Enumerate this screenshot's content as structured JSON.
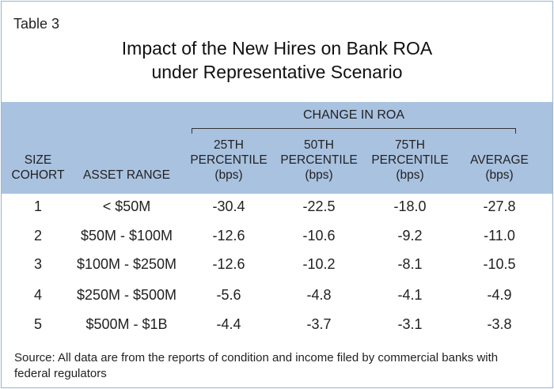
{
  "table_label": "Table 3",
  "title_line1": "Impact of the New Hires on Bank ROA",
  "title_line2": "under Representative Scenario",
  "group_header": "CHANGE IN ROA",
  "columns": {
    "size_cohort": [
      "SIZE",
      "COHORT"
    ],
    "asset_range": [
      "ASSET RANGE"
    ],
    "p25": [
      "25TH",
      "PERCENTILE",
      "(bps)"
    ],
    "p50": [
      "50TH",
      "PERCENTILE",
      "(bps)"
    ],
    "p75": [
      "75TH",
      "PERCENTILE",
      "(bps)"
    ],
    "average": [
      "AVERAGE",
      "(bps)"
    ]
  },
  "rows": [
    {
      "cohort": "1",
      "range": "< $50M",
      "p25": "-30.4",
      "p50": "-22.5",
      "p75": "-18.0",
      "avg": "-27.8"
    },
    {
      "cohort": "2",
      "range": "$50M - $100M",
      "p25": "-12.6",
      "p50": "-10.6",
      "p75": "-9.2",
      "avg": "-11.0"
    },
    {
      "cohort": "3",
      "range": "$100M - $250M",
      "p25": "-12.6",
      "p50": "-10.2",
      "p75": "-8.1",
      "avg": "-10.5"
    },
    {
      "cohort": "4",
      "range": "$250M - $500M",
      "p25": "-5.6",
      "p50": "-4.8",
      "p75": "-4.1",
      "avg": "-4.9"
    },
    {
      "cohort": "5",
      "range": "$500M - $1B",
      "p25": "-4.4",
      "p50": "-3.7",
      "p75": "-3.1",
      "avg": "-3.8"
    }
  ],
  "source": "Source: All data are from the reports of condition and income filed by commercial banks with federal regulators",
  "colors": {
    "header_band": "#a9c2e0",
    "border": "#9bb3cf"
  }
}
